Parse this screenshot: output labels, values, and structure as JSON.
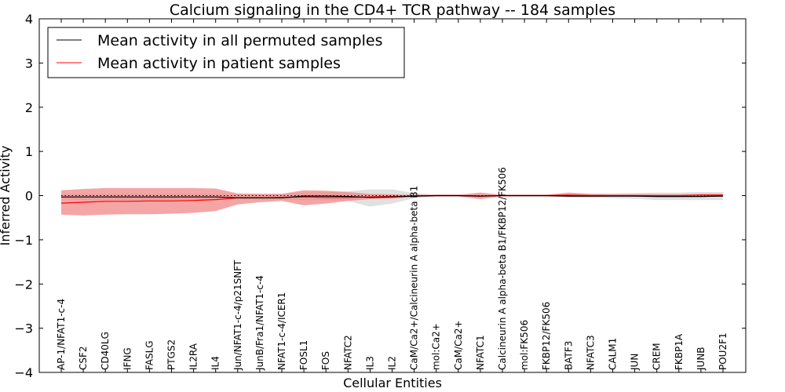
{
  "chart_data": {
    "type": "line",
    "title": "Calcium signaling in the CD4+ TCR pathway -- 184 samples",
    "xlabel": "Cellular Entities",
    "ylabel": "Inferred Activity",
    "ylim": [
      -4,
      4
    ],
    "yticks": [
      -4,
      -3,
      -2,
      -1,
      0,
      1,
      2,
      3,
      4
    ],
    "ytick_labels": [
      "−4",
      "−3",
      "−2",
      "−1",
      "0",
      "1",
      "2",
      "3",
      "4"
    ],
    "grid": false,
    "legend_position": "top-left",
    "reference_line": 0,
    "categories": [
      "AP-1/NFAT1-c-4",
      "CSF2",
      "CD40LG",
      "IFNG",
      "FASLG",
      "PTGS2",
      "IL2RA",
      "IL4",
      "Jun/NFAT1-c-4/p21SNFT",
      "JunB/Fra1/NFAT1-c-4",
      "NFAT1-c-4/ICER1",
      "FOSL1",
      "FOS",
      "NFATC2",
      "IL3",
      "IL2",
      "CaM/Ca2+/Calcineurin A alpha-beta B1",
      "mol:Ca2+",
      "CaM/Ca2+",
      "NFATC1",
      "Calcineurin A alpha-beta B1/FKBP12/FK506",
      "mol:FK506",
      "FKBP12/FK506",
      "BATF3",
      "NFATC3",
      "CALM1",
      "JUN",
      "CREM",
      "FKBP1A",
      "JUNB",
      "POU2F1"
    ],
    "series": [
      {
        "name": "Mean activity in all permuted samples",
        "color": "#000000",
        "values": [
          -0.03,
          -0.03,
          -0.03,
          -0.03,
          -0.03,
          -0.03,
          -0.03,
          -0.03,
          -0.05,
          -0.05,
          -0.05,
          -0.01,
          -0.01,
          -0.02,
          -0.04,
          -0.03,
          -0.01,
          0.0,
          0.0,
          -0.01,
          0.0,
          0.0,
          0.0,
          -0.01,
          -0.01,
          -0.01,
          -0.01,
          -0.02,
          -0.02,
          -0.02,
          -0.01
        ],
        "lower": [
          -0.08,
          -0.1,
          -0.1,
          -0.1,
          -0.1,
          -0.1,
          -0.1,
          -0.1,
          -0.1,
          -0.1,
          -0.1,
          -0.1,
          -0.1,
          -0.12,
          -0.25,
          -0.18,
          -0.06,
          -0.02,
          -0.02,
          -0.04,
          -0.01,
          -0.01,
          -0.02,
          -0.04,
          -0.05,
          -0.06,
          -0.07,
          -0.1,
          -0.1,
          -0.1,
          -0.1
        ],
        "upper": [
          0.03,
          0.04,
          0.04,
          0.04,
          0.04,
          0.04,
          0.04,
          0.04,
          0.04,
          0.04,
          0.04,
          0.07,
          0.08,
          0.1,
          0.14,
          0.14,
          0.06,
          0.02,
          0.02,
          0.03,
          0.01,
          0.01,
          0.02,
          0.04,
          0.04,
          0.05,
          0.06,
          0.07,
          0.07,
          0.08,
          0.08
        ]
      },
      {
        "name": "Mean activity in patient samples",
        "color": "#ff0000",
        "values": [
          -0.17,
          -0.15,
          -0.13,
          -0.13,
          -0.12,
          -0.12,
          -0.11,
          -0.09,
          -0.05,
          -0.05,
          -0.04,
          -0.03,
          -0.04,
          -0.04,
          -0.03,
          -0.02,
          -0.01,
          0.0,
          0.0,
          -0.01,
          0.0,
          0.0,
          0.0,
          0.01,
          0.0,
          0.0,
          0.0,
          0.0,
          0.0,
          0.01,
          0.01
        ],
        "lower": [
          -0.43,
          -0.45,
          -0.43,
          -0.42,
          -0.42,
          -0.41,
          -0.39,
          -0.35,
          -0.2,
          -0.15,
          -0.12,
          -0.22,
          -0.18,
          -0.12,
          -0.08,
          -0.07,
          -0.03,
          -0.02,
          -0.02,
          -0.08,
          -0.02,
          -0.02,
          -0.02,
          -0.03,
          -0.03,
          -0.02,
          -0.02,
          -0.02,
          -0.02,
          -0.02,
          -0.02
        ],
        "upper": [
          0.12,
          0.15,
          0.17,
          0.17,
          0.17,
          0.17,
          0.17,
          0.16,
          0.05,
          0.04,
          0.04,
          0.12,
          0.11,
          0.08,
          0.04,
          0.03,
          0.02,
          0.02,
          0.02,
          0.07,
          0.02,
          0.02,
          0.02,
          0.07,
          0.04,
          0.03,
          0.03,
          0.03,
          0.03,
          0.04,
          0.04
        ]
      }
    ]
  }
}
